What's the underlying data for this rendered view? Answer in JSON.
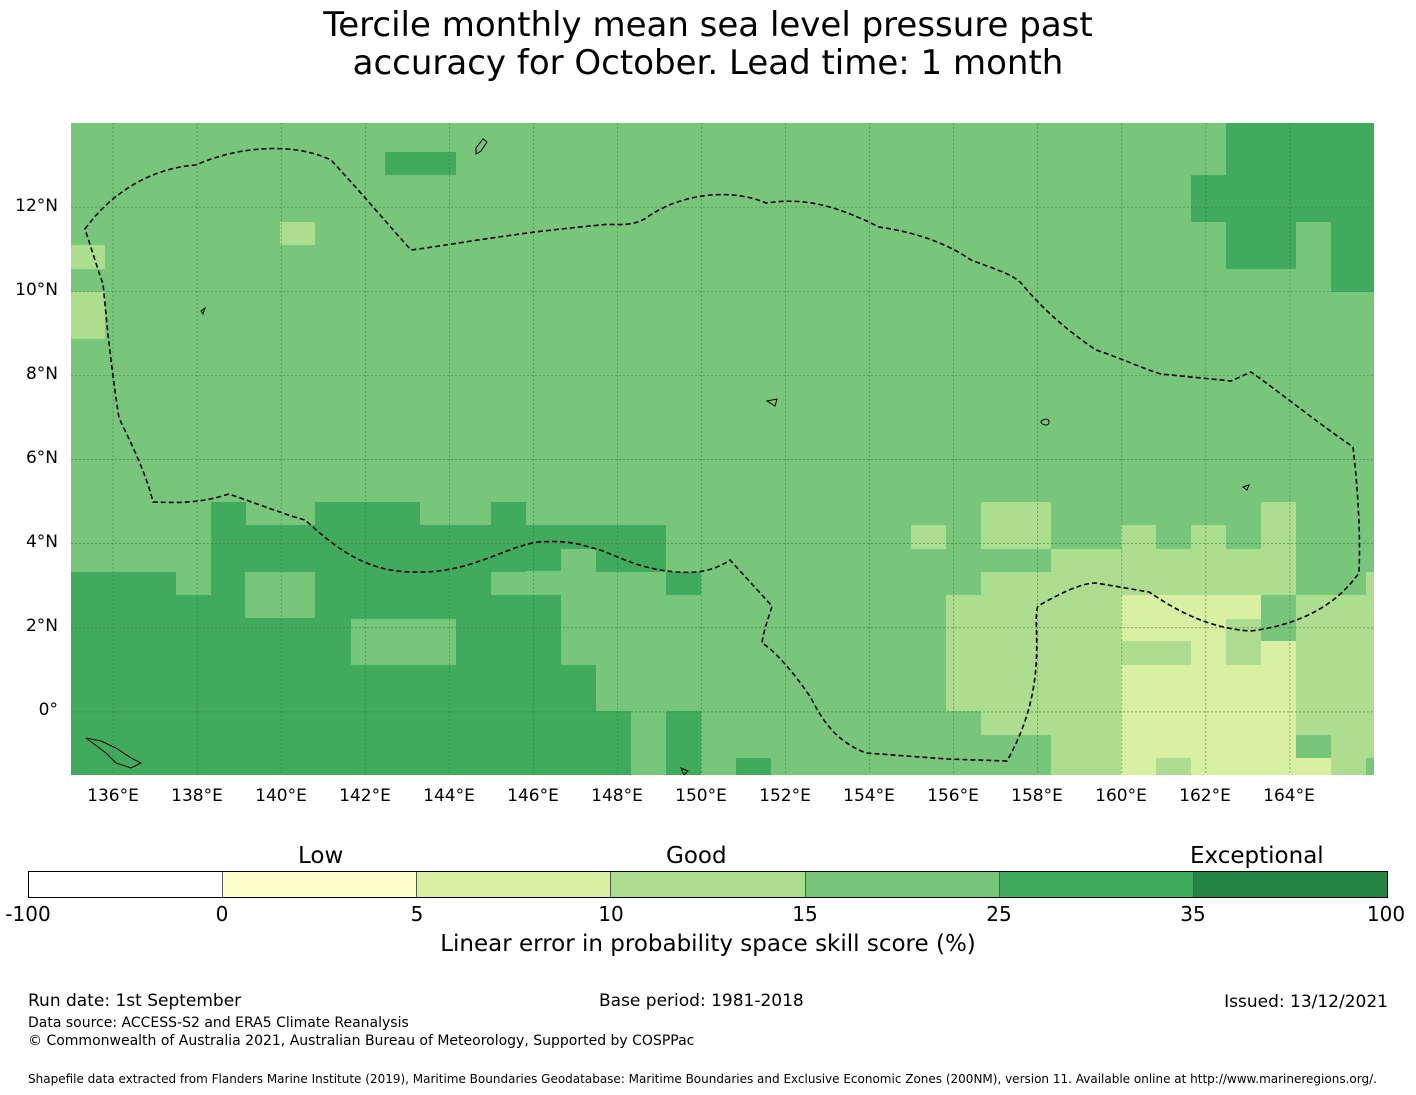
{
  "title_line1": "Tercile monthly mean sea level pressure past",
  "title_line2": "accuracy for October. Lead time: 1 month",
  "map": {
    "lon_range": [
      135,
      166
    ],
    "lat_range": [
      -1.5,
      14
    ],
    "lat_ticks": [
      "12°N",
      "10°N",
      "8°N",
      "6°N",
      "4°N",
      "2°N",
      "0°"
    ],
    "lon_ticks": [
      "136°E",
      "138°E",
      "140°E",
      "142°E",
      "144°E",
      "146°E",
      "148°E",
      "150°E",
      "152°E",
      "154°E",
      "156°E",
      "158°E",
      "160°E",
      "162°E",
      "164°E"
    ],
    "base_color": "#78c679",
    "boundary_style": "dashed black line (EEZ)",
    "gridlines": true
  },
  "legend": {
    "categories": [
      "Low",
      "Good",
      "Exceptional"
    ],
    "colors": [
      "#ffffff",
      "#ffffcc",
      "#d9f0a3",
      "#addd8e",
      "#78c679",
      "#41ab5d",
      "#238443"
    ],
    "ticks": [
      "-100",
      "0",
      "5",
      "10",
      "15",
      "25",
      "35",
      "100"
    ],
    "title": "Linear error in probability space skill score (%)"
  },
  "footer": {
    "run_date": "Run date: 1st September",
    "base_period": "Base period: 1981-2018",
    "issued": "Issued: 13/12/2021",
    "data_source": "Data source: ACCESS-S2 and ERA5 Climate Reanalysis",
    "copyright": "© Commonwealth of Australia 2021, Australian Bureau of Meteorology, Supported by COSPPac",
    "shapefile": "Shapefile data extracted from Flanders Marine Institute (2019), Maritime Boundaries Geodatabase: Maritime Boundaries and Exclusive Economic Zones (200NM), version 11. Available online at http://www.marineregions.org/."
  }
}
